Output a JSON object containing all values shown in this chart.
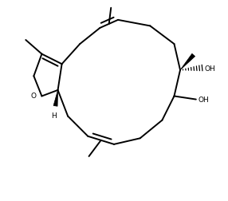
{
  "bg_color": "#ffffff",
  "line_color": "#000000",
  "lw": 1.4,
  "figsize": [
    2.86,
    2.53
  ],
  "dpi": 100,
  "xlim": [
    0,
    100
  ],
  "ylim": [
    0,
    100
  ]
}
